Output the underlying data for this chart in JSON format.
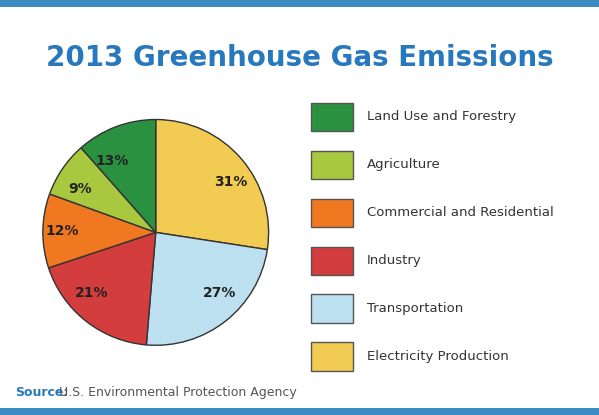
{
  "title": "2013 Greenhouse Gas Emissions",
  "title_color": "#2878be",
  "title_fontsize": 20,
  "background_color": "#ffffff",
  "border_color": "#3a8bbf",
  "border_thickness": 0.018,
  "slices": [
    31,
    27,
    21,
    12,
    9,
    13
  ],
  "labels": [
    "31%",
    "27%",
    "21%",
    "12%",
    "9%",
    "13%"
  ],
  "colors": [
    "#f2cb52",
    "#bde0f0",
    "#d43d3d",
    "#f07820",
    "#a8c840",
    "#2a9140"
  ],
  "legend_labels": [
    "Land Use and Forestry",
    "Agriculture",
    "Commercial and Residential",
    "Industry",
    "Transportation",
    "Electricity Production"
  ],
  "legend_colors": [
    "#2a9140",
    "#a8c840",
    "#f07820",
    "#d43d3d",
    "#bde0f0",
    "#f2cb52"
  ],
  "startangle": 90,
  "source_bold": "Source:",
  "source_text": " U.S. Environmental Protection Agency",
  "source_color": "#2878be",
  "source_text_color": "#555555",
  "source_fontsize": 9,
  "label_fontsize": 10,
  "legend_fontsize": 9.5
}
